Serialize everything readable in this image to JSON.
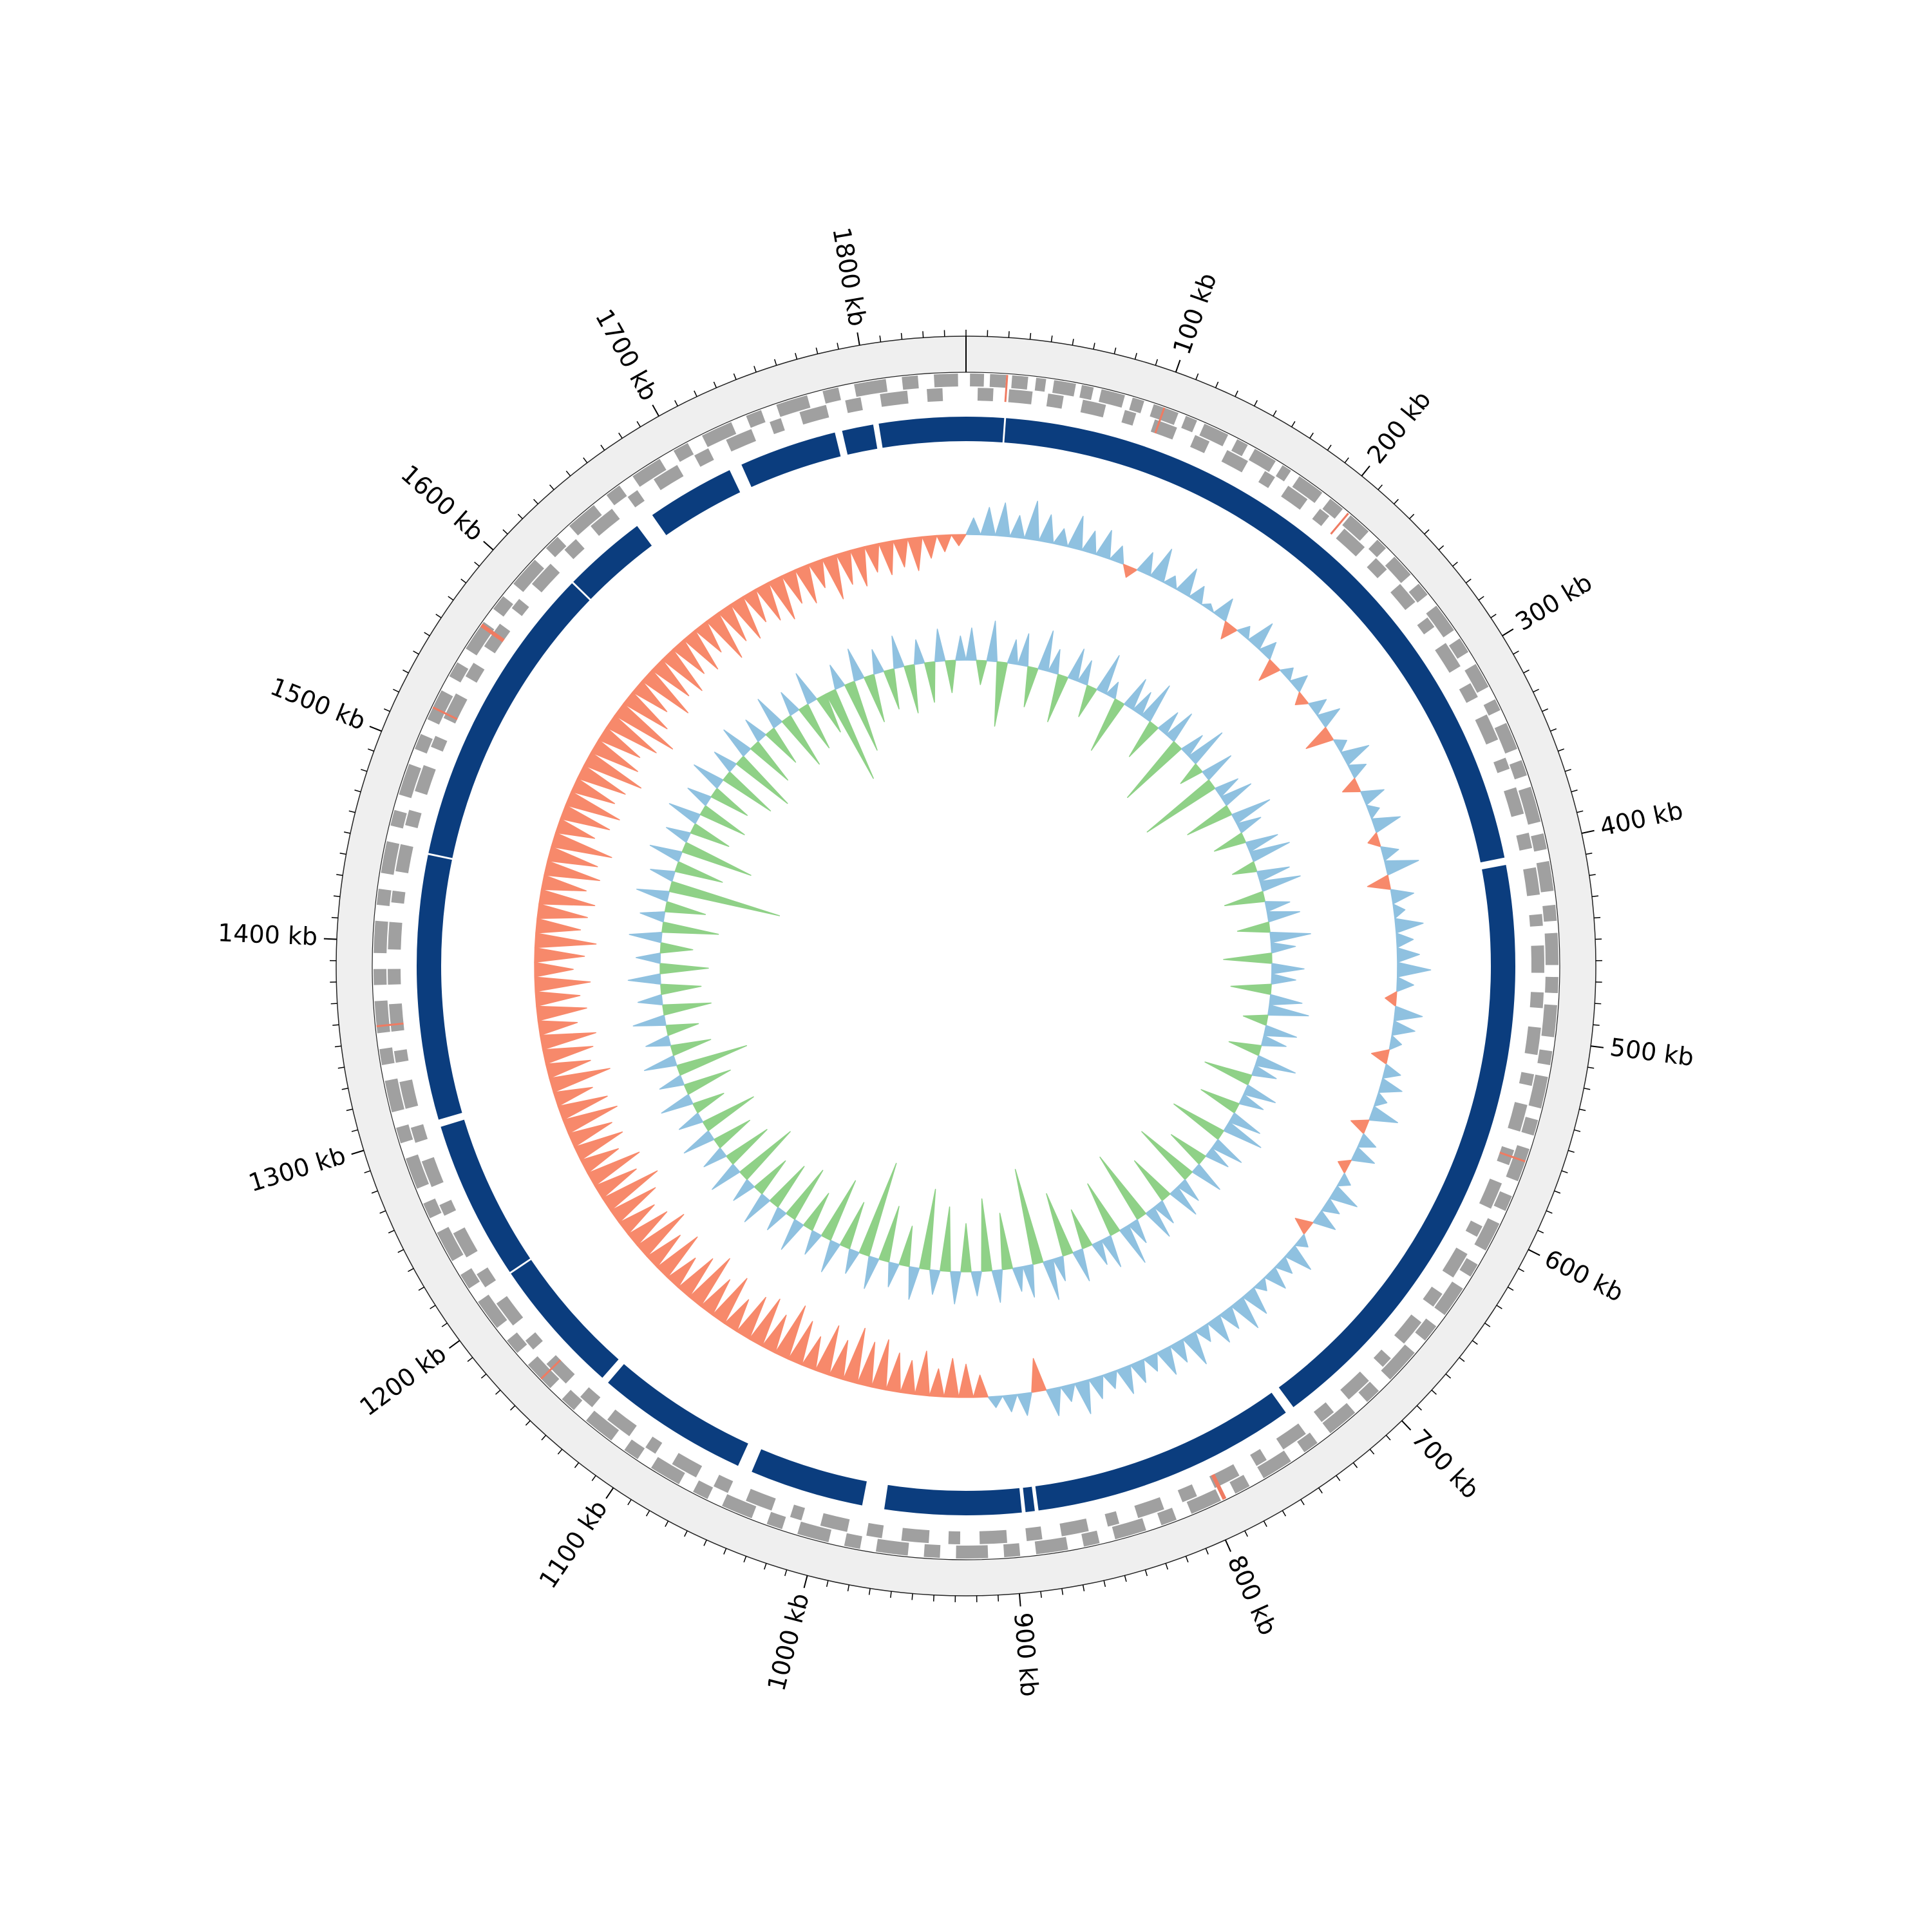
{
  "chart_data": {
    "type": "circular-genome",
    "genome_length": 1850,
    "xticks": [
      {
        "value": 100,
        "label": "100 kb"
      },
      {
        "value": 200,
        "label": "200 kb"
      },
      {
        "value": 300,
        "label": "300 kb"
      },
      {
        "value": 400,
        "label": "400 kb"
      },
      {
        "value": 500,
        "label": "500 kb"
      },
      {
        "value": 600,
        "label": "600 kb"
      },
      {
        "value": 700,
        "label": "700 kb"
      },
      {
        "value": 800,
        "label": "800 kb"
      },
      {
        "value": 900,
        "label": "900 kb"
      },
      {
        "value": 1000,
        "label": "1000 kb"
      },
      {
        "value": 1100,
        "label": "1100 kb"
      },
      {
        "value": 1200,
        "label": "1200 kb"
      },
      {
        "value": 1300,
        "label": "1300 kb"
      },
      {
        "value": 1400,
        "label": "1400 kb"
      },
      {
        "value": 1500,
        "label": "1500 kb"
      },
      {
        "value": 1600,
        "label": "1600 kb"
      },
      {
        "value": 1700,
        "label": "1700 kb"
      },
      {
        "value": 1800,
        "label": "1800 kb"
      }
    ],
    "minor_tick_step": 10,
    "ring_color": "#efefef",
    "genes_plus": {
      "color": "#a0a0a0",
      "features": [
        [
          2,
          9
        ],
        [
          12,
          20
        ],
        [
          23,
          31
        ],
        [
          35,
          40
        ],
        [
          44,
          55
        ],
        [
          58,
          64
        ],
        [
          68,
          80
        ],
        [
          84,
          90
        ],
        [
          95,
          108
        ],
        [
          112,
          118
        ],
        [
          122,
          135
        ],
        [
          140,
          146
        ],
        [
          150,
          162
        ],
        [
          166,
          171
        ],
        [
          176,
          190
        ],
        [
          195,
          203
        ],
        [
          208,
          220
        ],
        [
          226,
          232
        ],
        [
          238,
          250
        ],
        [
          256,
          263
        ],
        [
          270,
          285
        ],
        [
          290,
          298
        ],
        [
          305,
          318
        ],
        [
          325,
          331
        ],
        [
          338,
          352
        ],
        [
          358,
          366
        ],
        [
          372,
          390
        ],
        [
          396,
          404
        ],
        [
          410,
          425
        ],
        [
          432,
          440
        ],
        [
          446,
          462
        ],
        [
          468,
          476
        ],
        [
          482,
          498
        ],
        [
          505,
          512
        ],
        [
          518,
          534
        ],
        [
          540,
          548
        ],
        [
          555,
          572
        ],
        [
          580,
          588
        ],
        [
          595,
          610
        ],
        [
          618,
          625
        ],
        [
          632,
          648
        ],
        [
          655,
          664
        ],
        [
          672,
          690
        ],
        [
          698,
          706
        ],
        [
          714,
          730
        ],
        [
          738,
          746
        ],
        [
          754,
          770
        ],
        [
          778,
          786
        ],
        [
          794,
          810
        ],
        [
          818,
          826
        ],
        [
          834,
          850
        ],
        [
          858,
          866
        ],
        [
          874,
          890
        ],
        [
          898,
          906
        ],
        [
          914,
          930
        ],
        [
          938,
          946
        ],
        [
          954,
          970
        ],
        [
          978,
          986
        ],
        [
          994,
          1010
        ],
        [
          1018,
          1026
        ],
        [
          1034,
          1050
        ],
        [
          1058,
          1066
        ],
        [
          1074,
          1090
        ],
        [
          1098,
          1106
        ],
        [
          1114,
          1130
        ],
        [
          1138,
          1146
        ],
        [
          1154,
          1170
        ],
        [
          1178,
          1186
        ],
        [
          1194,
          1210
        ],
        [
          1218,
          1226
        ],
        [
          1234,
          1250
        ],
        [
          1258,
          1266
        ],
        [
          1274,
          1290
        ],
        [
          1298,
          1306
        ],
        [
          1314,
          1330
        ],
        [
          1338,
          1346
        ],
        [
          1354,
          1370
        ],
        [
          1378,
          1386
        ],
        [
          1394,
          1410
        ],
        [
          1418,
          1426
        ],
        [
          1434,
          1450
        ],
        [
          1458,
          1466
        ],
        [
          1474,
          1490
        ],
        [
          1498,
          1506
        ],
        [
          1514,
          1530
        ],
        [
          1538,
          1546
        ],
        [
          1554,
          1570
        ],
        [
          1578,
          1586
        ],
        [
          1594,
          1610
        ],
        [
          1618,
          1626
        ],
        [
          1634,
          1650
        ],
        [
          1658,
          1666
        ],
        [
          1674,
          1690
        ],
        [
          1698,
          1706
        ],
        [
          1714,
          1730
        ],
        [
          1738,
          1746
        ],
        [
          1754,
          1770
        ],
        [
          1778,
          1786
        ],
        [
          1794,
          1810
        ],
        [
          1818,
          1826
        ],
        [
          1834,
          1846
        ]
      ]
    },
    "genes_minus": {
      "color": "#a0a0a0",
      "features": [
        [
          6,
          14
        ],
        [
          22,
          34
        ],
        [
          42,
          50
        ],
        [
          60,
          72
        ],
        [
          82,
          88
        ],
        [
          98,
          110
        ],
        [
          120,
          128
        ],
        [
          138,
          150
        ],
        [
          160,
          166
        ],
        [
          174,
          186
        ],
        [
          194,
          200
        ],
        [
          210,
          224
        ],
        [
          232,
          240
        ],
        [
          250,
          262
        ],
        [
          272,
          278
        ],
        [
          288,
          302
        ],
        [
          312,
          320
        ],
        [
          330,
          344
        ],
        [
          354,
          360
        ],
        [
          370,
          384
        ],
        [
          394,
          402
        ],
        [
          412,
          426
        ],
        [
          436,
          442
        ],
        [
          452,
          466
        ],
        [
          476,
          484
        ],
        [
          494,
          508
        ],
        [
          518,
          524
        ],
        [
          534,
          548
        ],
        [
          558,
          566
        ],
        [
          576,
          590
        ],
        [
          600,
          606
        ],
        [
          616,
          630
        ],
        [
          640,
          648
        ],
        [
          658,
          672
        ],
        [
          682,
          688
        ],
        [
          698,
          712
        ],
        [
          722,
          730
        ],
        [
          740,
          754
        ],
        [
          764,
          770
        ],
        [
          780,
          794
        ],
        [
          804,
          812
        ],
        [
          822,
          836
        ],
        [
          846,
          852
        ],
        [
          862,
          876
        ],
        [
          886,
          894
        ],
        [
          904,
          918
        ],
        [
          928,
          934
        ],
        [
          944,
          958
        ],
        [
          968,
          976
        ],
        [
          986,
          1000
        ],
        [
          1010,
          1016
        ],
        [
          1026,
          1040
        ],
        [
          1050,
          1058
        ],
        [
          1068,
          1082
        ],
        [
          1092,
          1098
        ],
        [
          1108,
          1122
        ],
        [
          1132,
          1140
        ],
        [
          1150,
          1164
        ],
        [
          1174,
          1180
        ],
        [
          1190,
          1204
        ],
        [
          1214,
          1222
        ],
        [
          1232,
          1246
        ],
        [
          1256,
          1262
        ],
        [
          1272,
          1286
        ],
        [
          1296,
          1304
        ],
        [
          1314,
          1328
        ],
        [
          1338,
          1344
        ],
        [
          1354,
          1368
        ],
        [
          1378,
          1386
        ],
        [
          1396,
          1410
        ],
        [
          1420,
          1426
        ],
        [
          1436,
          1450
        ],
        [
          1460,
          1468
        ],
        [
          1478,
          1492
        ],
        [
          1502,
          1508
        ],
        [
          1518,
          1532
        ],
        [
          1542,
          1550
        ],
        [
          1560,
          1574
        ],
        [
          1584,
          1590
        ],
        [
          1600,
          1614
        ],
        [
          1624,
          1632
        ],
        [
          1642,
          1656
        ],
        [
          1666,
          1672
        ],
        [
          1682,
          1696
        ],
        [
          1706,
          1714
        ],
        [
          1724,
          1738
        ],
        [
          1748,
          1754
        ],
        [
          1764,
          1778
        ],
        [
          1788,
          1796
        ],
        [
          1806,
          1820
        ],
        [
          1830,
          1838
        ]
      ]
    },
    "rna": {
      "color": "#ef7b62",
      "features": [
        [
          20,
          21
        ],
        [
          100,
          101
        ],
        [
          206,
          207
        ],
        [
          561,
          562
        ],
        [
          791,
          793
        ],
        [
          1160,
          1161
        ],
        [
          1357,
          1358
        ],
        [
          1520,
          1521
        ],
        [
          1567,
          1569
        ]
      ]
    },
    "contigs": {
      "color": "#0b3d7e",
      "segments": [
        [
          0,
          20.5
        ],
        [
          21.5,
          404
        ],
        [
          408,
          737
        ],
        [
          742,
          886
        ],
        [
          888,
          893
        ],
        [
          895,
          969
        ],
        [
          981,
          1043
        ],
        [
          1051,
          1134
        ],
        [
          1138,
          1212.5
        ],
        [
          1213.5,
          1300
        ],
        [
          1304,
          1447.5
        ],
        [
          1448.5,
          1614.5
        ],
        [
          1615.5,
          1661
        ],
        [
          1671,
          1719
        ],
        [
          1726,
          1779
        ],
        [
          1783,
          1800
        ],
        [
          1803,
          1850
        ]
      ]
    },
    "gc_content": {
      "window": 10,
      "positive_color": "#8fc1e0",
      "negative_color": "#f7896b",
      "values": [
        3,
        5,
        6,
        4,
        7,
        5,
        3,
        6,
        4,
        5,
        3,
        -2,
        4,
        6,
        2,
        5,
        3,
        1,
        4,
        -3,
        2,
        5,
        3,
        -4,
        2,
        3,
        -2,
        3,
        4,
        -5,
        2,
        5,
        3,
        -3,
        4,
        2,
        5,
        -2,
        3,
        6,
        -4,
        4,
        2,
        5,
        3,
        4,
        6,
        3,
        -2,
        5,
        4,
        2,
        -3,
        3,
        4,
        2,
        5,
        -3,
        3,
        4,
        -2,
        2,
        5,
        3,
        4,
        -3,
        2,
        5,
        3,
        4,
        2,
        5,
        6,
        4,
        5,
        3,
        6,
        4,
        5,
        3,
        4,
        5,
        3,
        4,
        6,
        3,
        5,
        -6,
        4,
        3,
        2,
        -4,
        -6,
        -7,
        -5,
        -8,
        -6,
        -7,
        -9,
        -8,
        -10,
        -7,
        -9,
        -6,
        -8,
        -10,
        -7,
        -9,
        -8,
        -6,
        -9,
        -7,
        -10,
        -8,
        -6,
        -9,
        -7,
        -10,
        -8,
        -7,
        -9,
        -11,
        -8,
        -10,
        -7,
        -9,
        -8,
        -10,
        -9,
        -7,
        -11,
        -8,
        -9,
        -10,
        -7,
        -9,
        -8,
        -10,
        -7,
        -9,
        -11,
        -8,
        -9,
        -10,
        -8,
        -10,
        -9,
        -11,
        -7,
        -9,
        -10,
        -8,
        -9,
        -11,
        -9,
        -8,
        -10,
        -12,
        -9,
        -7,
        -10,
        -8,
        -9,
        -7,
        -8,
        -6,
        -9,
        -7,
        -8,
        -6,
        -7,
        -8,
        -6,
        -7,
        -5,
        -8,
        -6,
        -7,
        -5,
        -6,
        -5,
        -6,
        -4,
        -3,
        -2
      ]
    },
    "gc_skew": {
      "window": 10,
      "positive_color": "#8fc1e0",
      "negative_color": "#8fd187",
      "values": [
        4,
        -3,
        5,
        -8,
        3,
        4,
        -5,
        5,
        3,
        -6,
        4,
        3,
        -4,
        5,
        2,
        -7,
        4,
        3,
        5,
        -5,
        3,
        4,
        -9,
        3,
        5,
        -3,
        4,
        -10,
        3,
        4,
        -6,
        5,
        3,
        -4,
        4,
        5,
        -3,
        4,
        5,
        -5,
        3,
        4,
        -4,
        5,
        3,
        -6,
        4,
        3,
        -5,
        4,
        5,
        -3,
        4,
        3,
        -4,
        5,
        3,
        -6,
        4,
        3,
        -5,
        4,
        5,
        -7,
        4,
        3,
        -5,
        4,
        -8,
        3,
        4,
        -6,
        3,
        4,
        -9,
        3,
        5,
        -7,
        4,
        3,
        -5,
        4,
        -8,
        3,
        5,
        -12,
        4,
        3,
        -7,
        4,
        -9,
        3,
        -6,
        4,
        -8,
        3,
        -10,
        4,
        -5,
        3,
        -7,
        4,
        -12,
        3,
        -6,
        4,
        -8,
        3,
        -5,
        4,
        -7,
        3,
        -6,
        4,
        -5,
        3,
        -8,
        4,
        -6,
        3,
        -5,
        4,
        -7,
        3,
        -4,
        4,
        -6,
        3,
        -9,
        4,
        -5,
        3,
        -4,
        4,
        -6,
        3,
        -5,
        4,
        -6,
        3,
        -4,
        4,
        -7,
        3,
        -5,
        4,
        -14,
        3,
        -6,
        4,
        -9,
        3,
        -5,
        4,
        -6,
        3,
        -5,
        4,
        -7,
        3,
        -8,
        4,
        -6,
        3,
        -5,
        4,
        -7,
        3,
        -6,
        4,
        -5,
        -12,
        3,
        -9,
        4,
        -6,
        3,
        -5,
        4,
        -6,
        3,
        -5,
        4,
        -4,
        3
      ]
    }
  }
}
